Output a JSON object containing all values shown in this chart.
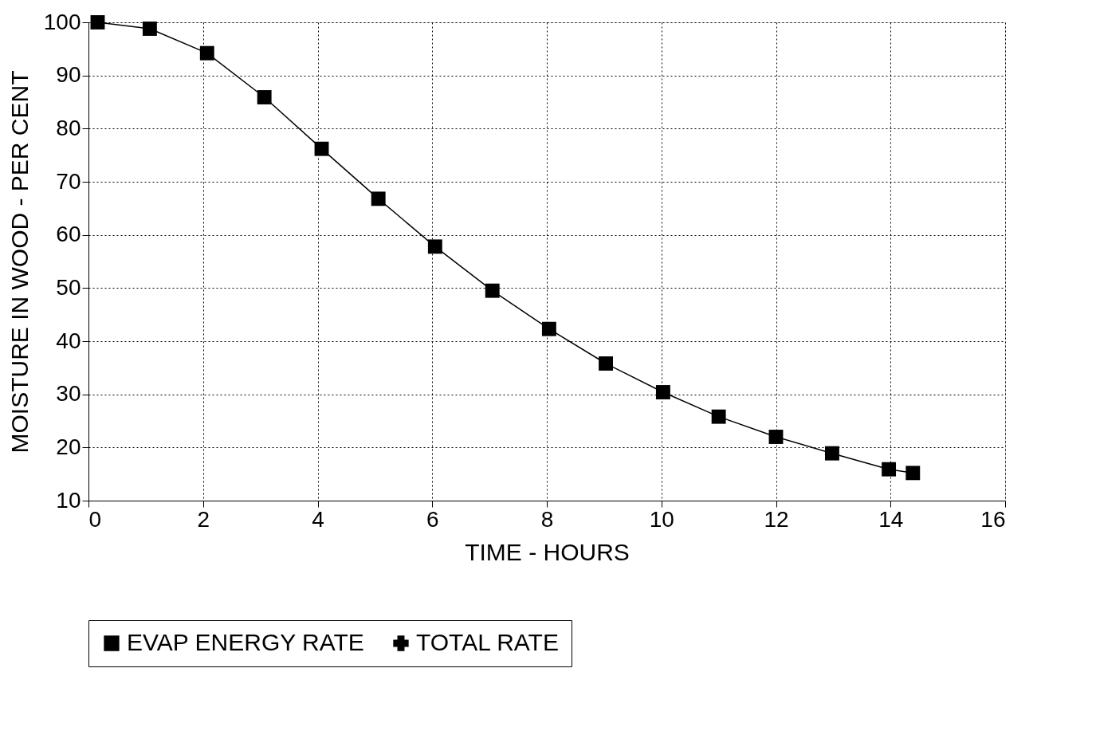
{
  "chart_data": {
    "type": "line",
    "xlabel": "TIME - HOURS",
    "ylabel": "MOISTURE IN WOOD - PER CENT",
    "xlim": [
      0,
      16
    ],
    "xticks": [
      0,
      2,
      4,
      6,
      8,
      10,
      12,
      14,
      16
    ],
    "ylim": [
      10,
      100
    ],
    "yticks": [
      10,
      20,
      30,
      40,
      50,
      60,
      70,
      80,
      90,
      100
    ],
    "grid": true,
    "legend": "bottom",
    "line_style": "solid",
    "x": [
      0.16,
      1.07,
      2.07,
      3.07,
      4.07,
      5.06,
      6.05,
      7.05,
      8.04,
      9.03,
      10.03,
      11.0,
      12.0,
      12.98,
      13.97,
      14.39
    ],
    "series": [
      {
        "name": "EVAP ENERGY RATE",
        "color": "#000000",
        "marker": "square",
        "values": [
          100,
          98.8,
          94.2,
          85.9,
          76.2,
          66.8,
          57.8,
          49.5,
          42.3,
          35.8,
          30.4,
          25.8,
          22.0,
          18.9,
          15.9,
          15.2
        ]
      },
      {
        "name": "TOTAL RATE",
        "color": "#000000",
        "marker": "cross",
        "values": [
          null,
          null,
          null,
          null,
          null,
          null,
          null,
          null,
          null,
          null,
          null,
          null,
          null,
          null,
          null,
          null
        ]
      }
    ]
  }
}
